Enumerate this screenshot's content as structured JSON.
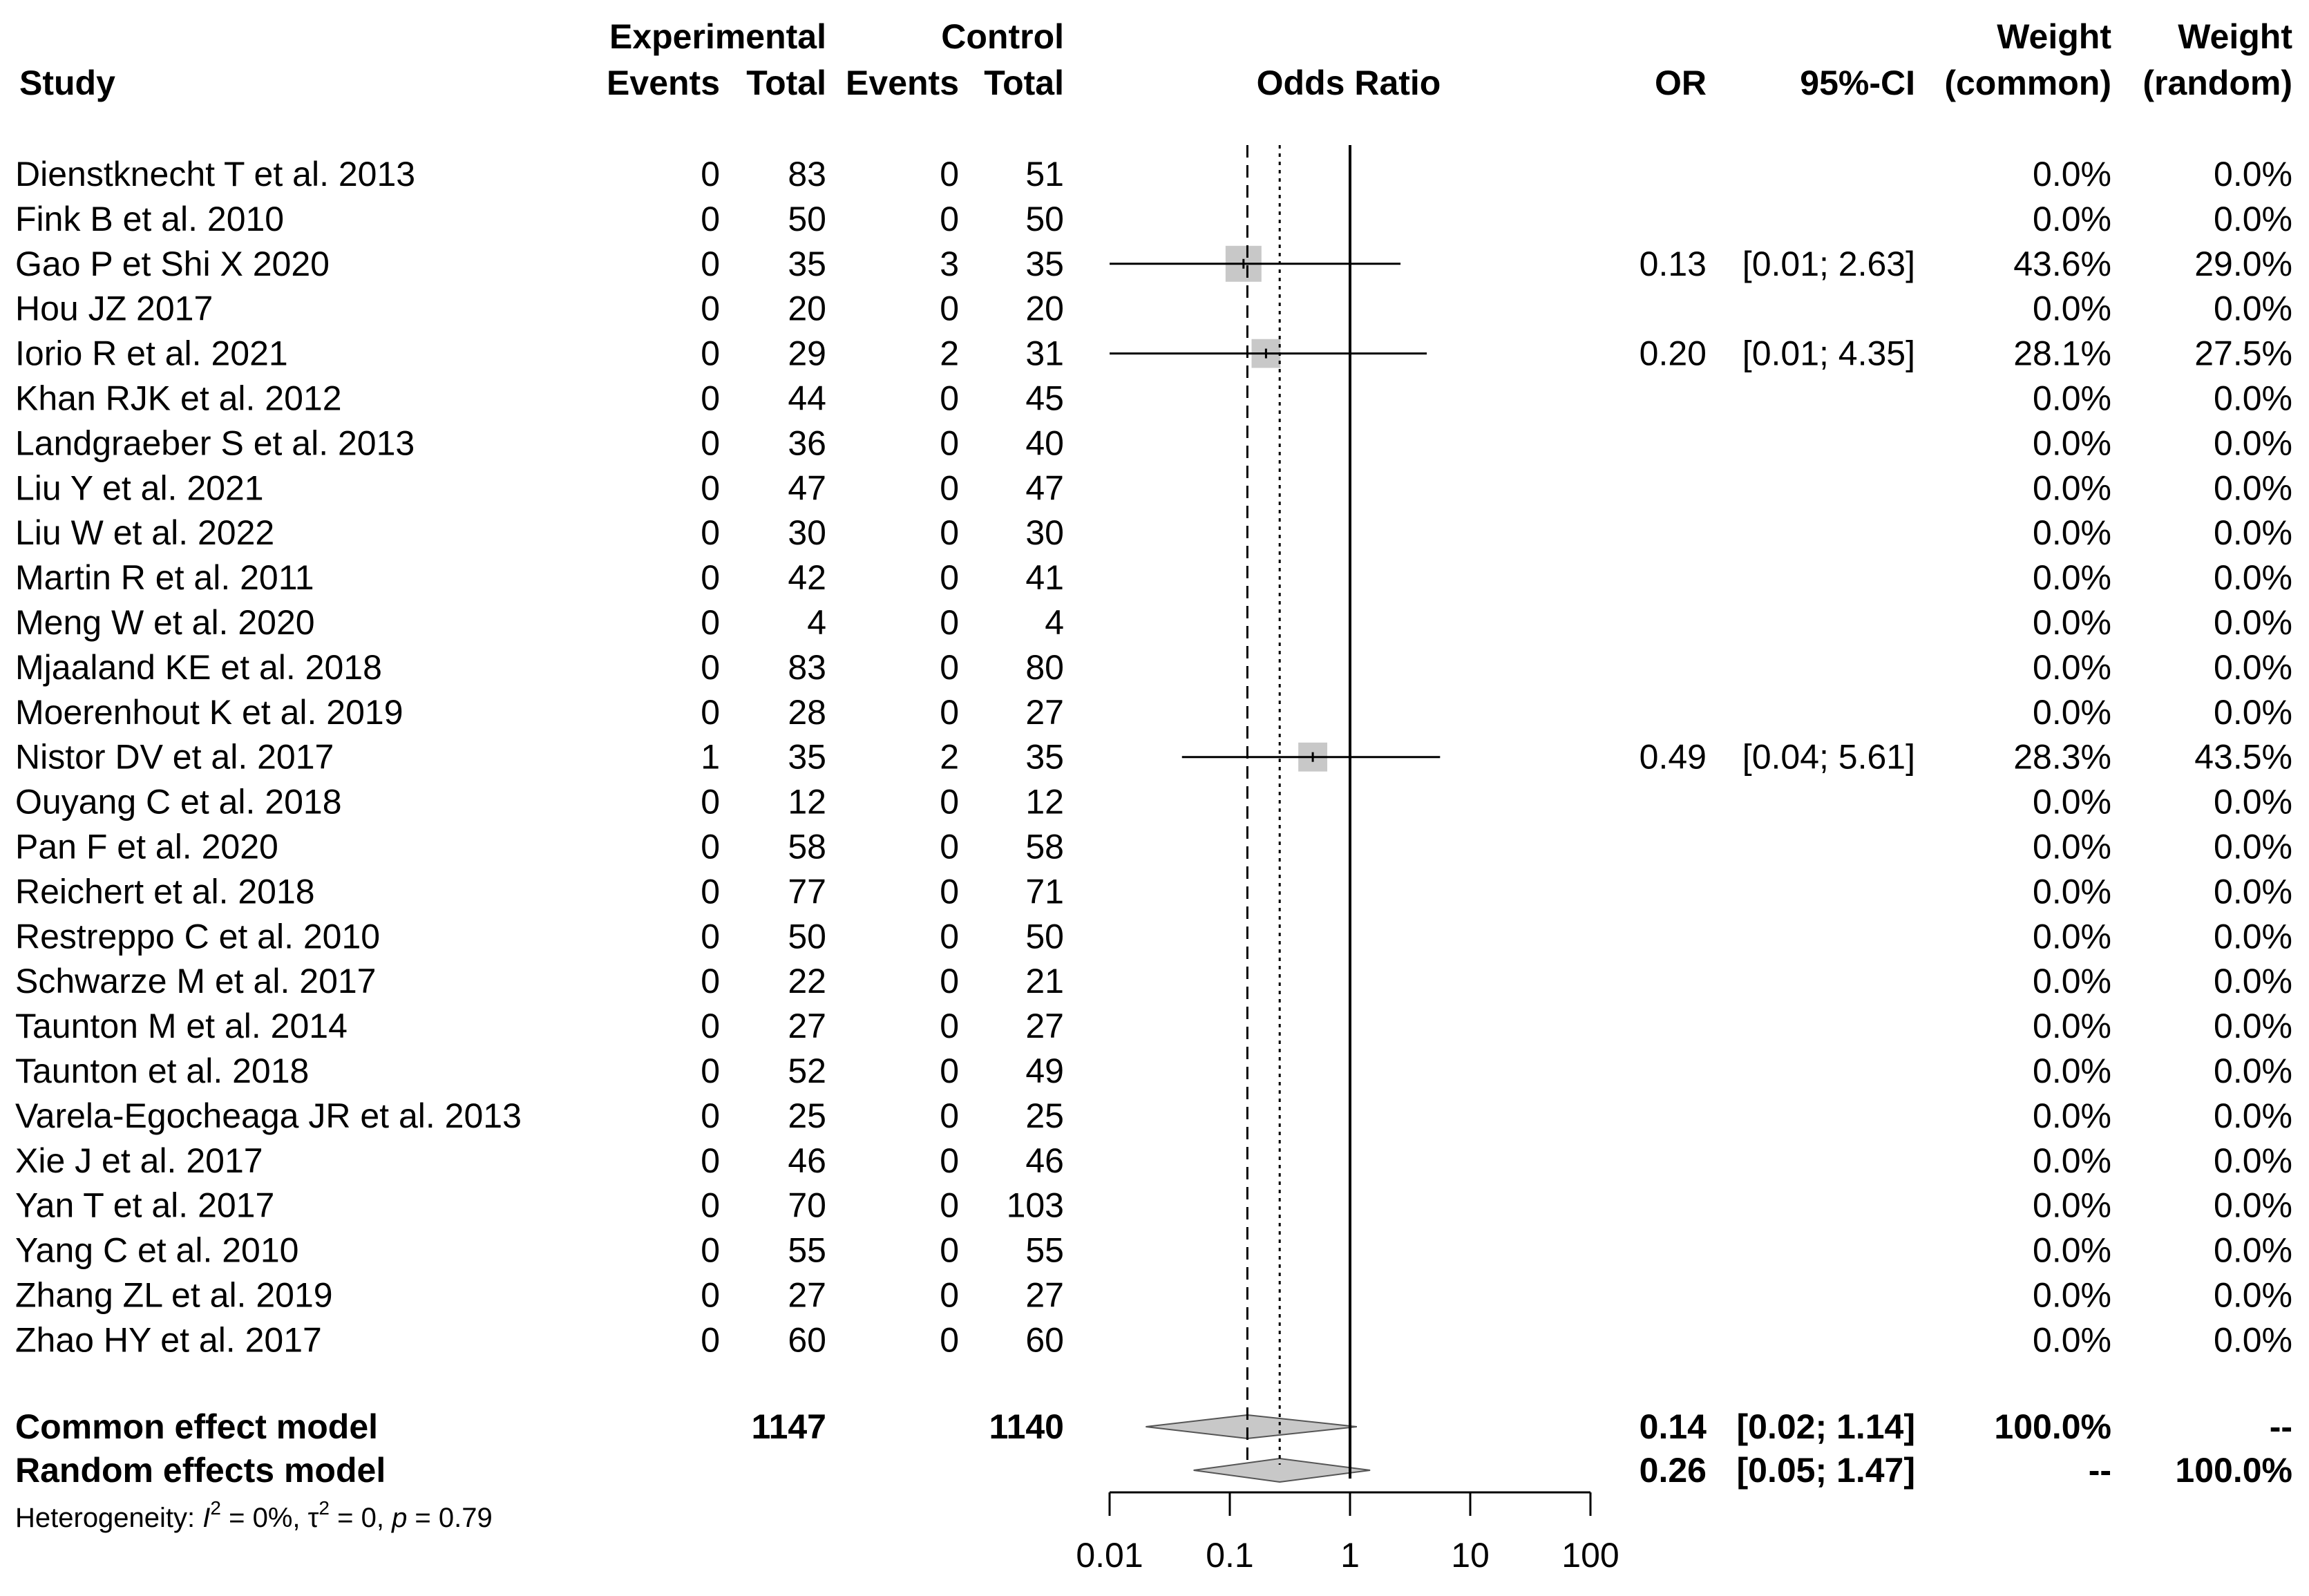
{
  "chart_data": {
    "type": "forest",
    "title": "",
    "header": {
      "study": "Study",
      "group1": "Experimental",
      "group2": "Control",
      "events": "Events",
      "total": "Total",
      "odds_ratio": "Odds Ratio",
      "or": "OR",
      "ci": "95%-CI",
      "weight": "Weight",
      "weight_common": "(common)",
      "weight_random": "(random)"
    },
    "studies": [
      {
        "name": "Dienstknecht T et al. 2013",
        "e_events": "0",
        "e_total": "83",
        "c_events": "0",
        "c_total": "51",
        "or": null,
        "ci_lo": null,
        "ci_hi": null,
        "or_text": "",
        "ci_text": "",
        "w_common": "0.0%",
        "w_random": "0.0%"
      },
      {
        "name": "Fink B et al.  2010",
        "e_events": "0",
        "e_total": "50",
        "c_events": "0",
        "c_total": "50",
        "or": null,
        "ci_lo": null,
        "ci_hi": null,
        "or_text": "",
        "ci_text": "",
        "w_common": "0.0%",
        "w_random": "0.0%"
      },
      {
        "name": "Gao P et Shi X 2020",
        "e_events": "0",
        "e_total": "35",
        "c_events": "3",
        "c_total": "35",
        "or": 0.13,
        "ci_lo": 0.01,
        "ci_hi": 2.63,
        "or_text": "0.13",
        "ci_text": "[0.01; 2.63]",
        "w_common": "43.6%",
        "w_random": "29.0%"
      },
      {
        "name": "Hou JZ 2017",
        "e_events": "0",
        "e_total": "20",
        "c_events": "0",
        "c_total": "20",
        "or": null,
        "ci_lo": null,
        "ci_hi": null,
        "or_text": "",
        "ci_text": "",
        "w_common": "0.0%",
        "w_random": "0.0%"
      },
      {
        "name": "Iorio R et al. 2021",
        "e_events": "0",
        "e_total": "29",
        "c_events": "2",
        "c_total": "31",
        "or": 0.2,
        "ci_lo": 0.01,
        "ci_hi": 4.35,
        "or_text": "0.20",
        "ci_text": "[0.01; 4.35]",
        "w_common": "28.1%",
        "w_random": "27.5%"
      },
      {
        "name": "Khan RJK et al. 2012",
        "e_events": "0",
        "e_total": "44",
        "c_events": "0",
        "c_total": "45",
        "or": null,
        "ci_lo": null,
        "ci_hi": null,
        "or_text": "",
        "ci_text": "",
        "w_common": "0.0%",
        "w_random": "0.0%"
      },
      {
        "name": "Landgraeber S et al.  2013",
        "e_events": "0",
        "e_total": "36",
        "c_events": "0",
        "c_total": "40",
        "or": null,
        "ci_lo": null,
        "ci_hi": null,
        "or_text": "",
        "ci_text": "",
        "w_common": "0.0%",
        "w_random": "0.0%"
      },
      {
        "name": "Liu Y et al. 2021",
        "e_events": "0",
        "e_total": "47",
        "c_events": "0",
        "c_total": "47",
        "or": null,
        "ci_lo": null,
        "ci_hi": null,
        "or_text": "",
        "ci_text": "",
        "w_common": "0.0%",
        "w_random": "0.0%"
      },
      {
        "name": "Liu W et al. 2022",
        "e_events": "0",
        "e_total": "30",
        "c_events": "0",
        "c_total": "30",
        "or": null,
        "ci_lo": null,
        "ci_hi": null,
        "or_text": "",
        "ci_text": "",
        "w_common": "0.0%",
        "w_random": "0.0%"
      },
      {
        "name": "Martin R et al. 2011",
        "e_events": "0",
        "e_total": "42",
        "c_events": "0",
        "c_total": "41",
        "or": null,
        "ci_lo": null,
        "ci_hi": null,
        "or_text": "",
        "ci_text": "",
        "w_common": "0.0%",
        "w_random": "0.0%"
      },
      {
        "name": "Meng W et al. 2020",
        "e_events": "0",
        "e_total": "4",
        "c_events": "0",
        "c_total": "4",
        "or": null,
        "ci_lo": null,
        "ci_hi": null,
        "or_text": "",
        "ci_text": "",
        "w_common": "0.0%",
        "w_random": "0.0%"
      },
      {
        "name": "Mjaaland KE et al. 2018",
        "e_events": "0",
        "e_total": "83",
        "c_events": "0",
        "c_total": "80",
        "or": null,
        "ci_lo": null,
        "ci_hi": null,
        "or_text": "",
        "ci_text": "",
        "w_common": "0.0%",
        "w_random": "0.0%"
      },
      {
        "name": "Moerenhout K et al.  2019",
        "e_events": "0",
        "e_total": "28",
        "c_events": "0",
        "c_total": "27",
        "or": null,
        "ci_lo": null,
        "ci_hi": null,
        "or_text": "",
        "ci_text": "",
        "w_common": "0.0%",
        "w_random": "0.0%"
      },
      {
        "name": "Nistor DV et al. 2017",
        "e_events": "1",
        "e_total": "35",
        "c_events": "2",
        "c_total": "35",
        "or": 0.49,
        "ci_lo": 0.04,
        "ci_hi": 5.61,
        "or_text": "0.49",
        "ci_text": "[0.04; 5.61]",
        "w_common": "28.3%",
        "w_random": "43.5%"
      },
      {
        "name": "Ouyang C et al. 2018",
        "e_events": "0",
        "e_total": "12",
        "c_events": "0",
        "c_total": "12",
        "or": null,
        "ci_lo": null,
        "ci_hi": null,
        "or_text": "",
        "ci_text": "",
        "w_common": "0.0%",
        "w_random": "0.0%"
      },
      {
        "name": "Pan F et al. 2020",
        "e_events": "0",
        "e_total": "58",
        "c_events": "0",
        "c_total": "58",
        "or": null,
        "ci_lo": null,
        "ci_hi": null,
        "or_text": "",
        "ci_text": "",
        "w_common": "0.0%",
        "w_random": "0.0%"
      },
      {
        "name": "Reichert et al. 2018",
        "e_events": "0",
        "e_total": "77",
        "c_events": "0",
        "c_total": "71",
        "or": null,
        "ci_lo": null,
        "ci_hi": null,
        "or_text": "",
        "ci_text": "",
        "w_common": "0.0%",
        "w_random": "0.0%"
      },
      {
        "name": "Restreppo C et al. 2010",
        "e_events": "0",
        "e_total": "50",
        "c_events": "0",
        "c_total": "50",
        "or": null,
        "ci_lo": null,
        "ci_hi": null,
        "or_text": "",
        "ci_text": "",
        "w_common": "0.0%",
        "w_random": "0.0%"
      },
      {
        "name": "Schwarze M et al. 2017",
        "e_events": "0",
        "e_total": "22",
        "c_events": "0",
        "c_total": "21",
        "or": null,
        "ci_lo": null,
        "ci_hi": null,
        "or_text": "",
        "ci_text": "",
        "w_common": "0.0%",
        "w_random": "0.0%"
      },
      {
        "name": "Taunton M et al. 2014",
        "e_events": "0",
        "e_total": "27",
        "c_events": "0",
        "c_total": "27",
        "or": null,
        "ci_lo": null,
        "ci_hi": null,
        "or_text": "",
        "ci_text": "",
        "w_common": "0.0%",
        "w_random": "0.0%"
      },
      {
        "name": "Taunton et al. 2018",
        "e_events": "0",
        "e_total": "52",
        "c_events": "0",
        "c_total": "49",
        "or": null,
        "ci_lo": null,
        "ci_hi": null,
        "or_text": "",
        "ci_text": "",
        "w_common": "0.0%",
        "w_random": "0.0%"
      },
      {
        "name": "Varela-Egocheaga JR et al.  2013",
        "e_events": "0",
        "e_total": "25",
        "c_events": "0",
        "c_total": "25",
        "or": null,
        "ci_lo": null,
        "ci_hi": null,
        "or_text": "",
        "ci_text": "",
        "w_common": "0.0%",
        "w_random": "0.0%"
      },
      {
        "name": "Xie J et al.  2017",
        "e_events": "0",
        "e_total": "46",
        "c_events": "0",
        "c_total": "46",
        "or": null,
        "ci_lo": null,
        "ci_hi": null,
        "or_text": "",
        "ci_text": "",
        "w_common": "0.0%",
        "w_random": "0.0%"
      },
      {
        "name": "Yan T et al. 2017",
        "e_events": "0",
        "e_total": "70",
        "c_events": "0",
        "c_total": "103",
        "or": null,
        "ci_lo": null,
        "ci_hi": null,
        "or_text": "",
        "ci_text": "",
        "w_common": "0.0%",
        "w_random": "0.0%"
      },
      {
        "name": "Yang C et al. 2010",
        "e_events": "0",
        "e_total": "55",
        "c_events": "0",
        "c_total": "55",
        "or": null,
        "ci_lo": null,
        "ci_hi": null,
        "or_text": "",
        "ci_text": "",
        "w_common": "0.0%",
        "w_random": "0.0%"
      },
      {
        "name": "Zhang ZL et al. 2019",
        "e_events": "0",
        "e_total": "27",
        "c_events": "0",
        "c_total": "27",
        "or": null,
        "ci_lo": null,
        "ci_hi": null,
        "or_text": "",
        "ci_text": "",
        "w_common": "0.0%",
        "w_random": "0.0%"
      },
      {
        "name": "Zhao HY et al. 2017",
        "e_events": "0",
        "e_total": "60",
        "c_events": "0",
        "c_total": "60",
        "or": null,
        "ci_lo": null,
        "ci_hi": null,
        "or_text": "",
        "ci_text": "",
        "w_common": "0.0%",
        "w_random": "0.0%"
      }
    ],
    "pooled": [
      {
        "name": "Common effect model",
        "e_total": "1147",
        "c_total": "1140",
        "or": 0.14,
        "ci_lo": 0.02,
        "ci_hi": 1.14,
        "or_text": "0.14",
        "ci_text": "[0.02; 1.14]",
        "w_common": "100.0%",
        "w_random": "--",
        "ref_line": "dashed"
      },
      {
        "name": "Random effects model",
        "e_total": "",
        "c_total": "",
        "or": 0.26,
        "ci_lo": 0.05,
        "ci_hi": 1.47,
        "or_text": "0.26",
        "ci_text": "[0.05; 1.47]",
        "w_common": "--",
        "w_random": "100.0%",
        "ref_line": "dotted"
      }
    ],
    "heterogeneity": {
      "label": "Heterogeneity: ",
      "i2_symbol": "I",
      "i2_sup": "2",
      "i2_value": " = 0%, ",
      "tau_symbol": "τ",
      "tau_sup": "2",
      "tau_value": " = 0, ",
      "p_symbol": "p",
      "p_value": " = 0.79"
    },
    "x_axis": {
      "scale": "log",
      "ticks": [
        0.01,
        0.1,
        1,
        10,
        100
      ],
      "tick_labels": [
        "0.01",
        "0.1",
        "1",
        "10",
        "100"
      ],
      "null_line": 1
    },
    "colors": {
      "square": "#c8c8c8",
      "diamond": "#c8c8c8",
      "line": "#000000"
    }
  }
}
